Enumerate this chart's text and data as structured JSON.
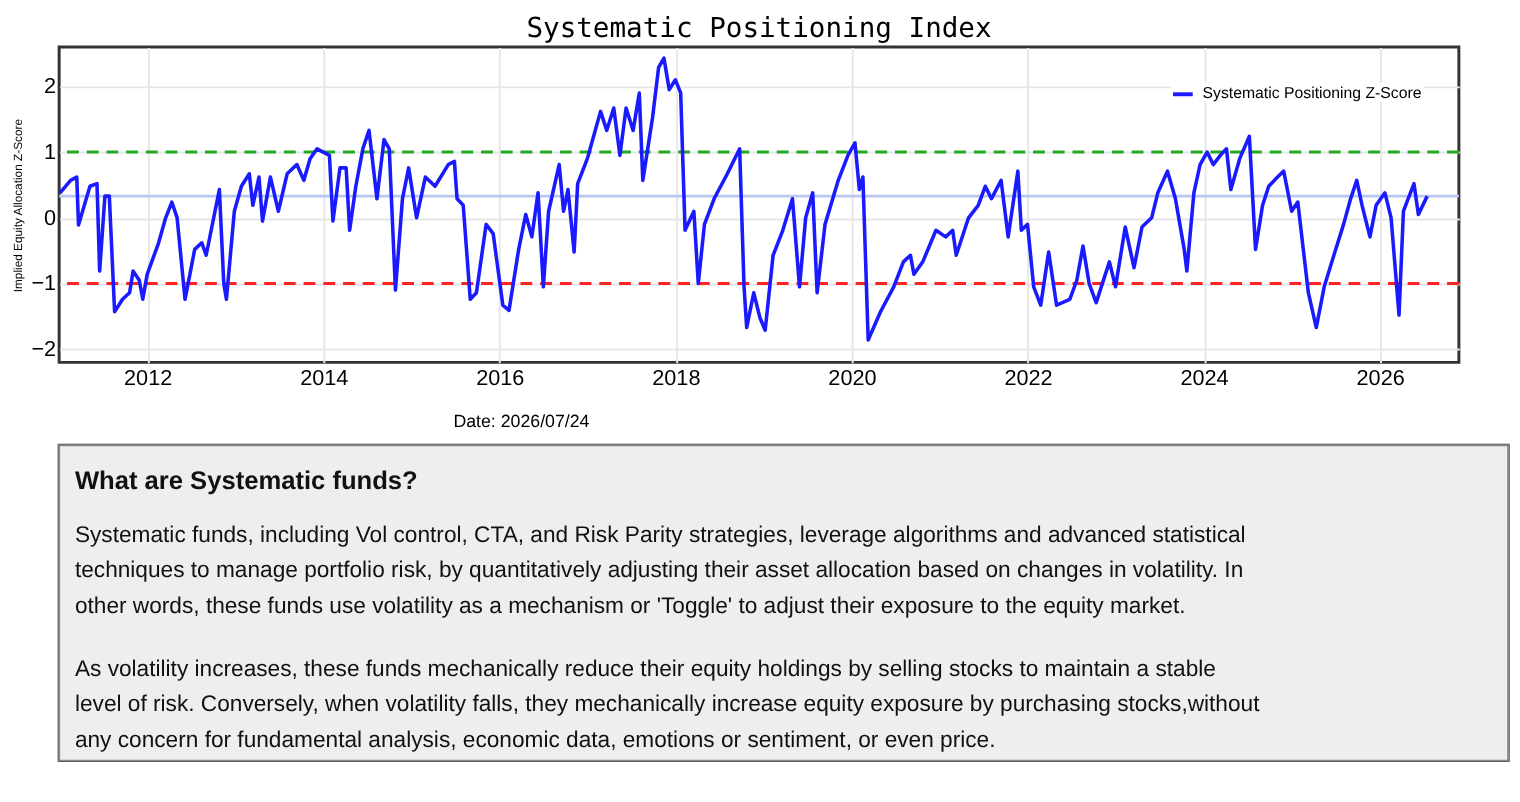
{
  "chart_data": {
    "type": "line",
    "title": "Systematic Positioning Index",
    "ylabel": "Implied Equity Allocation Z-Score",
    "xlim": [
      2011.0,
      2026.9
    ],
    "xticks": [
      2012,
      2014,
      2016,
      2018,
      2020,
      2022,
      2024,
      2026
    ],
    "ylim": [
      -2.2,
      2.6
    ],
    "yticks": [
      -2,
      -1,
      0,
      1,
      2
    ],
    "grid": true,
    "legend": "top right",
    "ref_lines": [
      {
        "axis": "y",
        "value": 1,
        "color": "#22aa22",
        "line_style": "dashed"
      },
      {
        "axis": "y",
        "value": -1,
        "color": "#ff2222",
        "line_style": "dashed"
      },
      {
        "axis": "y",
        "value": 0.33,
        "color": "#b8c8f0",
        "line_style": "solid"
      }
    ],
    "annotations": [
      "Date: 2026/07/24",
      "What are Systematic funds?",
      "Systematic funds, including Vol control, CTA, and Risk Parity strategies, leverage algorithms and advanced statistical techniques to manage portfolio risk, by quantitatively adjusting their asset allocation based on changes in volatility. In other words, these funds use volatility as a mechanism or 'Toggle' to adjust their exposure to the equity market.",
      "As volatility increases, these funds mechanically reduce their equity holdings by selling stocks to maintain a stable level of risk. Conversely, when volatility falls, they mechanically increase equity exposure by purchasing stocks,without any concern for fundamental analysis, economic data, emotions or sentiment, or even price."
    ],
    "series": [
      {
        "name": "Systematic Positioning Z-Score",
        "color": "#1a1aff",
        "x": [
          2011.01,
          2011.13,
          2011.2,
          2011.22,
          2011.35,
          2011.43,
          2011.46,
          2011.52,
          2011.57,
          2011.63,
          2011.72,
          2011.8,
          2011.84,
          2011.91,
          2011.95,
          2012.0,
          2012.13,
          2012.21,
          2012.28,
          2012.34,
          2012.43,
          2012.54,
          2012.62,
          2012.67,
          2012.82,
          2012.87,
          2012.9,
          2012.99,
          2013.07,
          2013.16,
          2013.2,
          2013.27,
          2013.31,
          2013.4,
          2013.49,
          2013.59,
          2013.7,
          2013.78,
          2013.85,
          2013.93,
          2014.0,
          2014.07,
          2014.11,
          2014.19,
          2014.26,
          2014.3,
          2014.37,
          2014.45,
          2014.52,
          2014.61,
          2014.69,
          2014.75,
          2014.82,
          2014.9,
          2014.97,
          2015.06,
          2015.16,
          2015.27,
          2015.42,
          2015.49,
          2015.52,
          2015.59,
          2015.67,
          2015.74,
          2015.85,
          2015.93,
          2016.04,
          2016.11,
          2016.22,
          2016.3,
          2016.37,
          2016.44,
          2016.5,
          2016.56,
          2016.68,
          2016.73,
          2016.78,
          2016.85,
          2016.89,
          2017.0,
          2017.15,
          2017.22,
          2017.3,
          2017.37,
          2017.44,
          2017.52,
          2017.59,
          2017.63,
          2017.74,
          2017.81,
          2017.87,
          2017.93,
          2018.0,
          2018.06,
          2018.11,
          2018.21,
          2018.26,
          2018.33,
          2018.44,
          2018.59,
          2018.73,
          2018.78,
          2018.81,
          2018.89,
          2018.96,
          2019.02,
          2019.11,
          2019.22,
          2019.33,
          2019.41,
          2019.48,
          2019.56,
          2019.61,
          2019.7,
          2019.85,
          2019.96,
          2020.04,
          2020.09,
          2020.13,
          2020.19,
          2020.33,
          2020.48,
          2020.59,
          2020.67,
          2020.71,
          2020.81,
          2020.96,
          2021.07,
          2021.15,
          2021.19,
          2021.33,
          2021.44,
          2021.52,
          2021.59,
          2021.7,
          2021.78,
          2021.89,
          2021.93,
          2022.0,
          2022.07,
          2022.15,
          2022.24,
          2022.33,
          2022.48,
          2022.56,
          2022.63,
          2022.7,
          2022.78,
          2022.93,
          2023.0,
          2023.11,
          2023.21,
          2023.3,
          2023.41,
          2023.48,
          2023.59,
          2023.68,
          2023.78,
          2023.81,
          2023.89,
          2023.96,
          2024.04,
          2024.11,
          2024.19,
          2024.26,
          2024.31,
          2024.41,
          2024.52,
          2024.59,
          2024.67,
          2024.74,
          2024.84,
          2024.91,
          2025.0,
          2025.07,
          2025.19,
          2025.28,
          2025.37,
          2025.48,
          2025.59,
          2025.67,
          2025.74,
          2025.8,
          2025.89,
          2025.96,
          2026.06,
          2026.13,
          2026.22,
          2026.27,
          2026.39,
          2026.44,
          2026.54
        ],
        "values": [
          0.38,
          0.57,
          0.62,
          -0.11,
          0.48,
          0.52,
          -0.81,
          0.33,
          0.33,
          -1.43,
          -1.24,
          -1.14,
          -0.81,
          -0.95,
          -1.24,
          -0.86,
          -0.38,
          0.0,
          0.24,
          0.0,
          -1.24,
          -0.48,
          -0.38,
          -0.57,
          0.43,
          -1.0,
          -1.24,
          0.1,
          0.48,
          0.67,
          0.19,
          0.62,
          -0.05,
          0.62,
          0.1,
          0.67,
          0.81,
          0.57,
          0.9,
          1.05,
          1.0,
          0.95,
          -0.05,
          0.76,
          0.76,
          -0.19,
          0.48,
          1.05,
          1.33,
          0.29,
          1.19,
          1.05,
          -1.1,
          0.29,
          0.76,
          0.0,
          0.62,
          0.48,
          0.81,
          0.86,
          0.29,
          0.19,
          -1.24,
          -1.14,
          -0.1,
          -0.24,
          -1.33,
          -1.41,
          -0.48,
          0.05,
          -0.29,
          0.38,
          -1.05,
          0.1,
          0.81,
          0.1,
          0.43,
          -0.52,
          0.52,
          0.9,
          1.62,
          1.33,
          1.67,
          0.95,
          1.67,
          1.33,
          1.9,
          0.57,
          1.52,
          2.29,
          2.43,
          1.95,
          2.1,
          1.9,
          -0.19,
          0.1,
          -1.0,
          -0.1,
          0.29,
          0.67,
          1.05,
          -1.05,
          -1.67,
          -1.14,
          -1.52,
          -1.71,
          -0.57,
          -0.19,
          0.29,
          -1.05,
          0.0,
          0.38,
          -1.14,
          -0.1,
          0.57,
          0.95,
          1.14,
          0.43,
          0.62,
          -1.86,
          -1.43,
          -1.05,
          -0.67,
          -0.57,
          -0.86,
          -0.67,
          -0.19,
          -0.29,
          -0.19,
          -0.57,
          0.0,
          0.19,
          0.48,
          0.29,
          0.57,
          -0.29,
          0.71,
          -0.19,
          -0.1,
          -1.05,
          -1.33,
          -0.52,
          -1.33,
          -1.24,
          -0.95,
          -0.43,
          -1.0,
          -1.29,
          -0.67,
          -1.05,
          -0.14,
          -0.76,
          -0.14,
          0.0,
          0.38,
          0.71,
          0.29,
          -0.48,
          -0.81,
          0.38,
          0.81,
          1.0,
          0.81,
          0.95,
          1.05,
          0.43,
          0.9,
          1.24,
          -0.48,
          0.19,
          0.48,
          0.62,
          0.71,
          0.1,
          0.24,
          -1.14,
          -1.67,
          -1.05,
          -0.57,
          -0.1,
          0.29,
          0.57,
          0.19,
          -0.29,
          0.19,
          0.38,
          0.0,
          -1.48,
          0.1,
          0.52,
          0.05,
          0.33
        ]
      }
    ]
  }
}
